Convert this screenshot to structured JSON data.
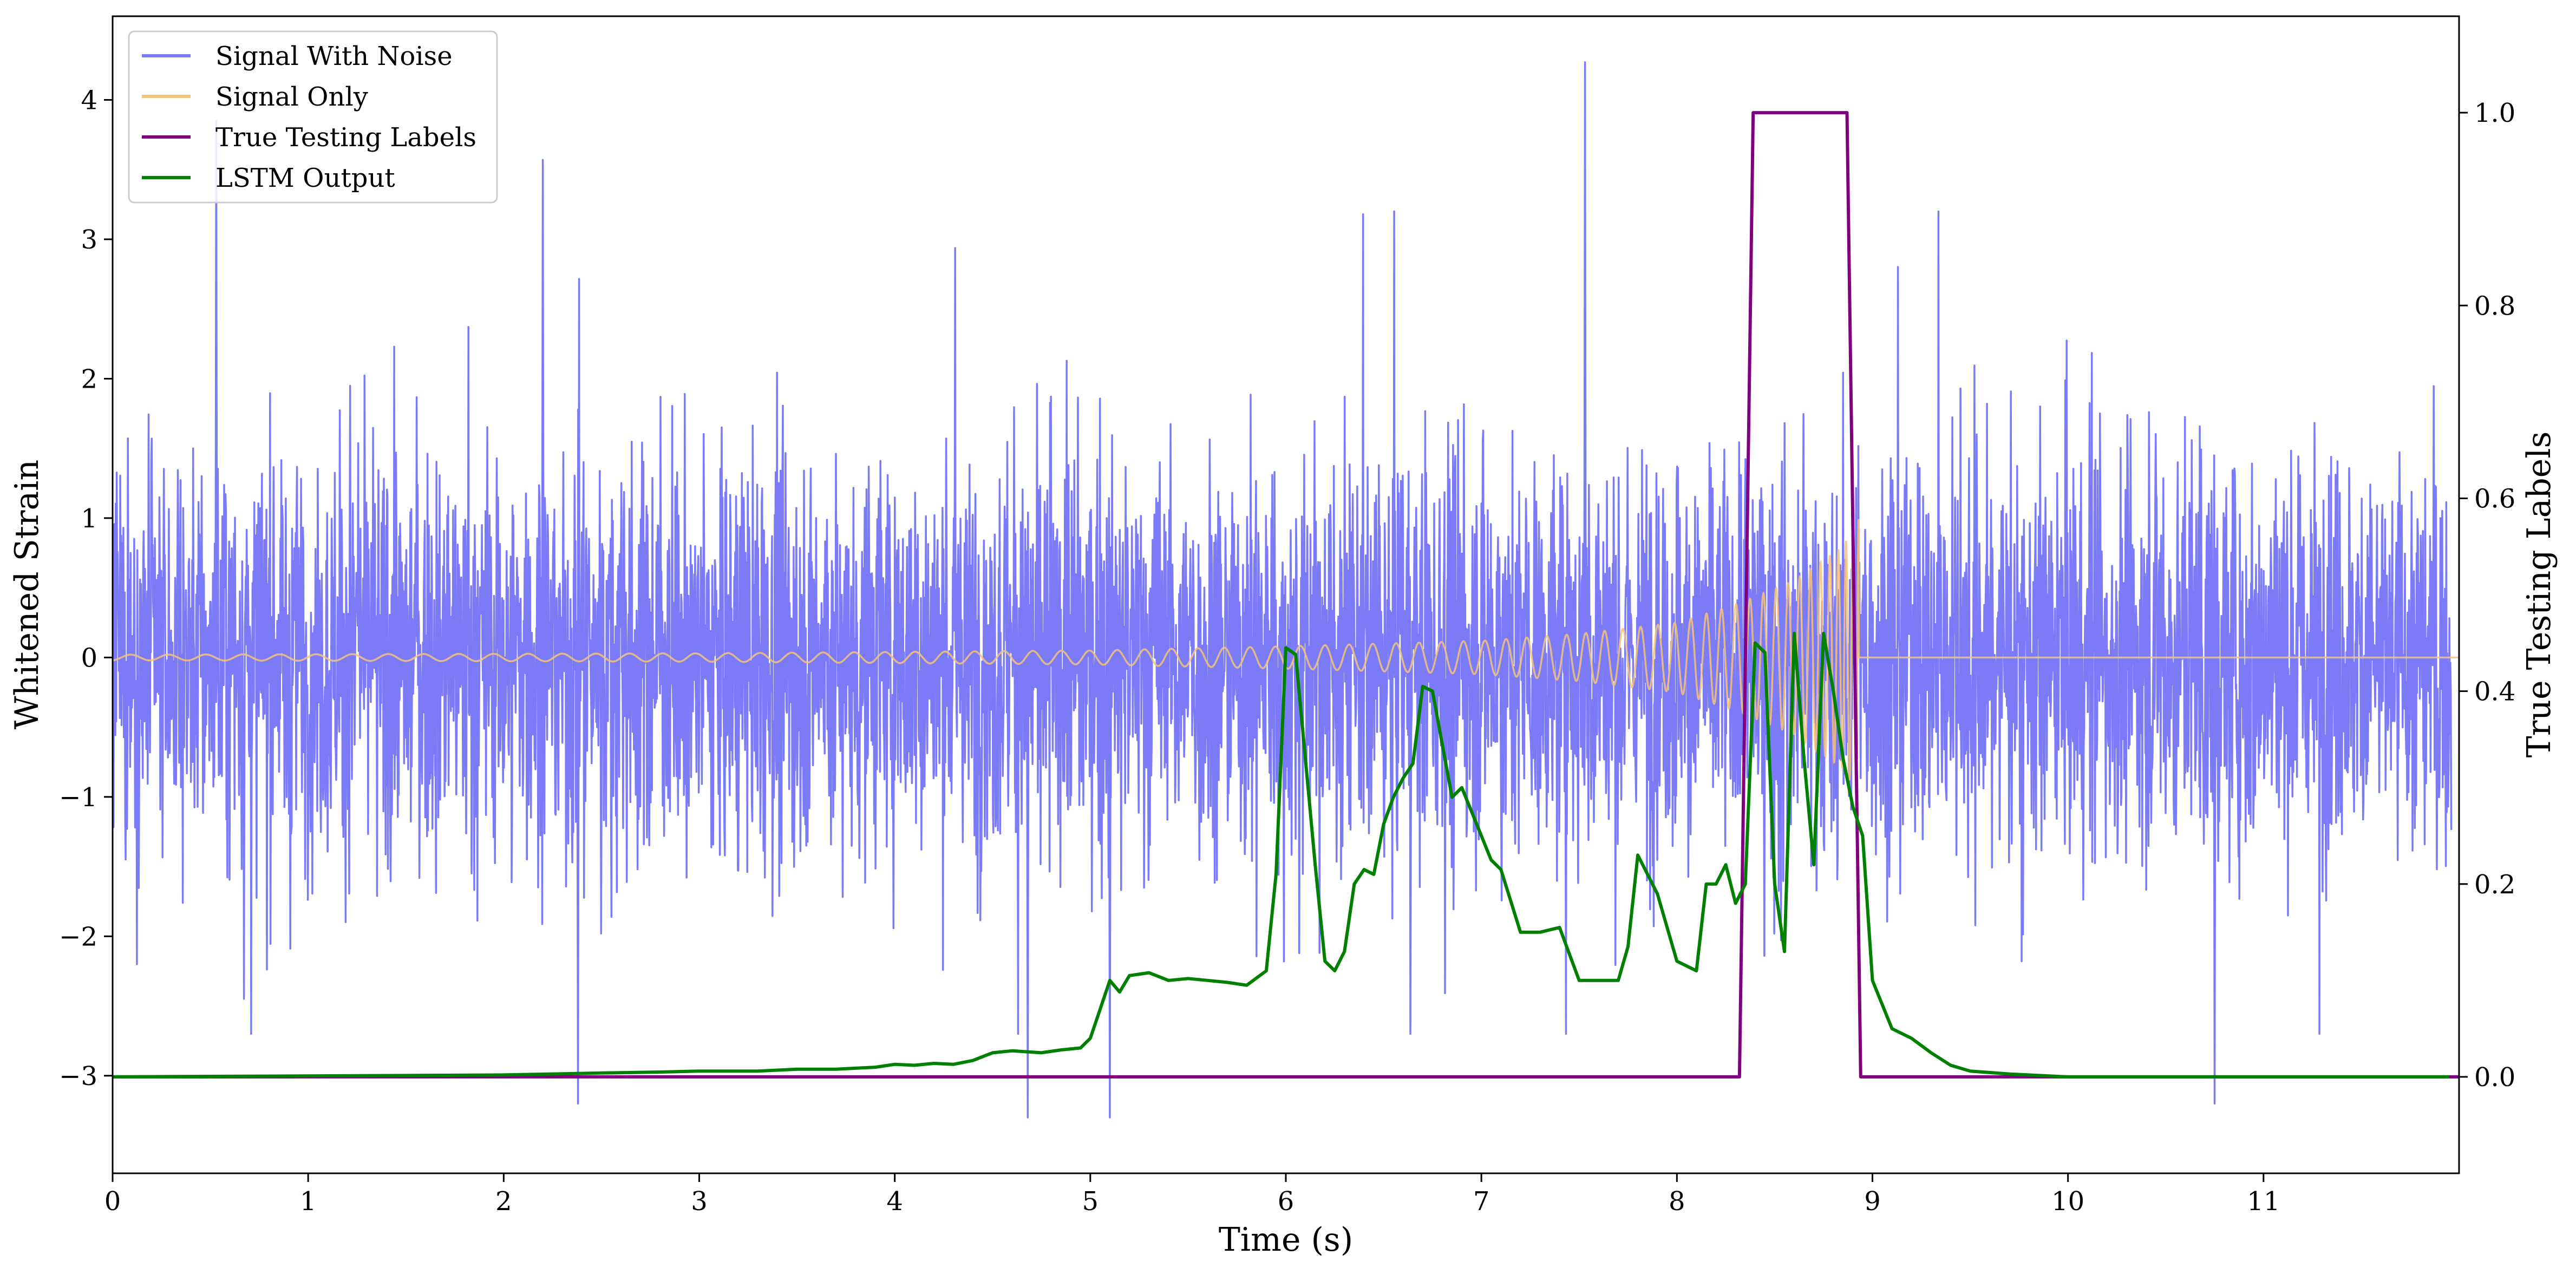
{
  "chart_data": {
    "type": "line",
    "xlabel": "Time (s)",
    "ylabel": "Whitened Strain",
    "y2label": "True Testing Labels",
    "xlim": [
      0,
      12
    ],
    "ylim": [
      -3.7,
      4.6
    ],
    "y2lim": [
      -0.1,
      1.1
    ],
    "xticks": [
      0,
      1,
      2,
      3,
      4,
      5,
      6,
      7,
      8,
      9,
      10,
      11
    ],
    "yticks": [
      -3,
      -2,
      -1,
      0,
      1,
      2,
      3,
      4
    ],
    "y2ticks": [
      0.0,
      0.2,
      0.4,
      0.6,
      0.8,
      1.0
    ],
    "grid": false,
    "legend_position": "top-left",
    "series": [
      {
        "name": "Signal With Noise",
        "axis": "left",
        "color": "#7b7bf7",
        "description": "dense noise, amplitude roughly -2.5..3, occasional spikes to about 4.3 and -3.3",
        "spikes": [
          [
            0.53,
            3.85
          ],
          [
            2.2,
            3.57
          ],
          [
            7.53,
            4.27
          ],
          [
            4.68,
            -3.3
          ],
          [
            5.1,
            -3.3
          ],
          [
            2.38,
            -3.2
          ],
          [
            10.75,
            -3.2
          ]
        ]
      },
      {
        "name": "Signal Only",
        "axis": "left",
        "color": "#f5c27a",
        "envelope": {
          "t": [
            0,
            3,
            5,
            6,
            7,
            7.5,
            8,
            8.3,
            8.6,
            8.85,
            8.93
          ],
          "amp": [
            0.02,
            0.03,
            0.05,
            0.08,
            0.12,
            0.17,
            0.25,
            0.38,
            0.55,
            0.8,
            1.0
          ]
        },
        "end_time": 8.93
      },
      {
        "name": "True Testing Labels",
        "axis": "right",
        "color": "#800080",
        "x": [
          0,
          8.32,
          8.39,
          8.87,
          8.94,
          12
        ],
        "y": [
          0,
          0,
          1,
          1,
          0,
          0
        ]
      },
      {
        "name": "LSTM Output",
        "axis": "right",
        "color": "#008000",
        "x": [
          0,
          2.0,
          2.5,
          2.8,
          3.0,
          3.3,
          3.5,
          3.7,
          3.8,
          3.9,
          4.0,
          4.1,
          4.2,
          4.3,
          4.4,
          4.5,
          4.6,
          4.75,
          4.85,
          4.95,
          5.0,
          5.05,
          5.1,
          5.15,
          5.2,
          5.3,
          5.4,
          5.5,
          5.6,
          5.7,
          5.8,
          5.9,
          5.95,
          6.0,
          6.05,
          6.1,
          6.15,
          6.2,
          6.25,
          6.3,
          6.35,
          6.4,
          6.45,
          6.5,
          6.55,
          6.6,
          6.65,
          6.7,
          6.75,
          6.8,
          6.85,
          6.9,
          7.0,
          7.05,
          7.1,
          7.2,
          7.3,
          7.4,
          7.5,
          7.6,
          7.7,
          7.75,
          7.8,
          7.9,
          8.0,
          8.1,
          8.15,
          8.2,
          8.25,
          8.3,
          8.35,
          8.4,
          8.45,
          8.5,
          8.55,
          8.6,
          8.65,
          8.7,
          8.75,
          8.8,
          8.85,
          8.9,
          8.95,
          9.0,
          9.1,
          9.2,
          9.3,
          9.4,
          9.5,
          9.7,
          10.0,
          11.0,
          11.95
        ],
        "y": [
          0.0,
          0.002,
          0.004,
          0.005,
          0.006,
          0.006,
          0.008,
          0.008,
          0.009,
          0.01,
          0.013,
          0.012,
          0.014,
          0.013,
          0.017,
          0.025,
          0.027,
          0.025,
          0.028,
          0.03,
          0.04,
          0.07,
          0.1,
          0.088,
          0.105,
          0.108,
          0.1,
          0.102,
          0.1,
          0.098,
          0.095,
          0.11,
          0.21,
          0.445,
          0.438,
          0.33,
          0.22,
          0.12,
          0.11,
          0.13,
          0.2,
          0.215,
          0.21,
          0.262,
          0.29,
          0.31,
          0.325,
          0.405,
          0.4,
          0.345,
          0.29,
          0.3,
          0.25,
          0.225,
          0.215,
          0.15,
          0.15,
          0.155,
          0.1,
          0.1,
          0.1,
          0.135,
          0.23,
          0.19,
          0.12,
          0.11,
          0.2,
          0.2,
          0.22,
          0.18,
          0.2,
          0.45,
          0.44,
          0.2,
          0.13,
          0.46,
          0.33,
          0.22,
          0.46,
          0.4,
          0.33,
          0.28,
          0.25,
          0.1,
          0.05,
          0.04,
          0.025,
          0.012,
          0.006,
          0.003,
          0.0,
          0.0,
          0.0
        ]
      }
    ]
  }
}
